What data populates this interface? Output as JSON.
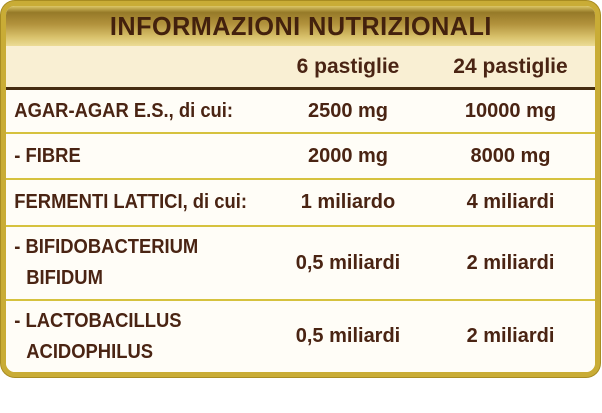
{
  "panel": {
    "title": "INFORMAZIONI NUTRIZIONALI",
    "columns": {
      "serving_small": "6 pastiglie",
      "serving_large": "24 pastiglie"
    },
    "rows": [
      {
        "label": "AGAR-AGAR E.S., di cui:",
        "value_6": "2500 mg",
        "value_24": "10000 mg"
      },
      {
        "label": "- FIBRE",
        "value_6": "2000 mg",
        "value_24": "8000 mg"
      },
      {
        "label": "FERMENTI LATTICI, di cui:",
        "value_6": "1 miliardo",
        "value_24": "4 miliardi"
      },
      {
        "label_line1": "- BIFIDOBACTERIUM",
        "label_line2": "BIFIDUM",
        "value_6": "0,5 miliardi",
        "value_24": "2 miliardi"
      },
      {
        "label_line1": "- LACTOBACILLUS",
        "label_line2": "ACIDOPHILUS",
        "value_6": "0,5 miliardi",
        "value_24": "2 miliardi"
      }
    ],
    "colors": {
      "text": "#4a2413",
      "border_gold": "#c9ac36",
      "divider_gold": "#d6c23e",
      "header_rule": "#462c10",
      "subheader_bg": "#f9efd3",
      "row_bg": "#fffdf7",
      "band_gradient_top": "#967a28",
      "band_gradient_bottom": "#ecdc96"
    }
  }
}
